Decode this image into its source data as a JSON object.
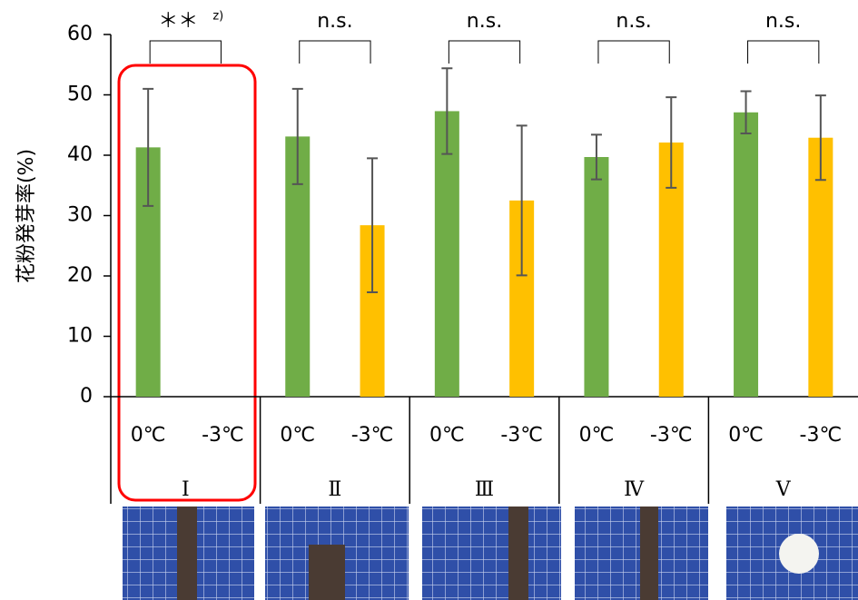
{
  "chart_data": {
    "type": "bar",
    "y_label": "花粉発芽率(%)",
    "groups": [
      "Ⅰ",
      "Ⅱ",
      "Ⅲ",
      "Ⅳ",
      "Ⅴ"
    ],
    "significance": [
      "＊＊",
      "n.s.",
      "n.s.",
      "n.s.",
      "n.s."
    ],
    "significance_note": "z)",
    "series": [
      {
        "name": "0℃",
        "color": "#70ad47",
        "values": [
          41.3,
          43.1,
          47.3,
          39.7,
          47.1
        ],
        "errors": [
          9.7,
          7.9,
          7.1,
          3.7,
          3.5
        ]
      },
      {
        "name": "-3℃",
        "color": "#ffc000",
        "values": [
          0,
          28.4,
          32.5,
          42.1,
          42.9
        ],
        "errors": [
          null,
          11.1,
          12.4,
          7.5,
          7
        ]
      }
    ],
    "ylim": [
      0,
      60
    ],
    "yticks": [
      0,
      10,
      20,
      30,
      40,
      50,
      60
    ]
  }
}
